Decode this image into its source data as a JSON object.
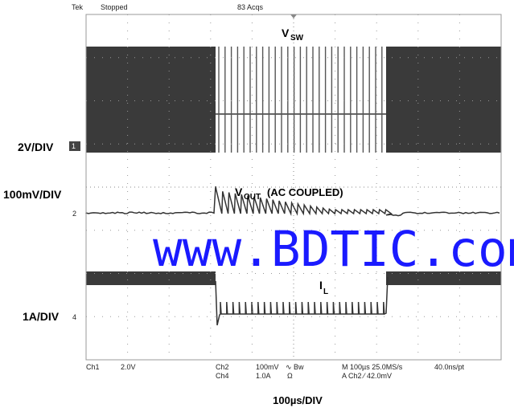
{
  "header": {
    "brand": "Tek",
    "status": "Stopped",
    "acquisitions": "83 Acqs"
  },
  "channel_scales": [
    {
      "label": "2V/DIV",
      "marker": "1"
    },
    {
      "label": "100mV/DIV",
      "marker": "2"
    },
    {
      "label": "1A/DIV",
      "marker": "4"
    }
  ],
  "traces": [
    {
      "label": "V",
      "subscript": "SW"
    },
    {
      "label": "V",
      "subscript": "OUT",
      "note": "(AC COUPLED)"
    },
    {
      "label": "I",
      "subscript": "L"
    }
  ],
  "readout": {
    "ch1": "Ch1",
    "ch1_scale": "2.0V",
    "ch2": "Ch2",
    "ch2_scale": "100mV",
    "ch2_flags": "∿ Bw",
    "ch4": "Ch4",
    "ch4_scale": "1.0A",
    "ch4_flags": "Ω",
    "horizontal": "M 100µs 25.0MS/s",
    "record": "40.0ns/pt",
    "trigger": "A  Ch2  ⁄  42.0mV"
  },
  "watermark": "www.BDTIC.com",
  "timebase": "100µs/DIV"
}
